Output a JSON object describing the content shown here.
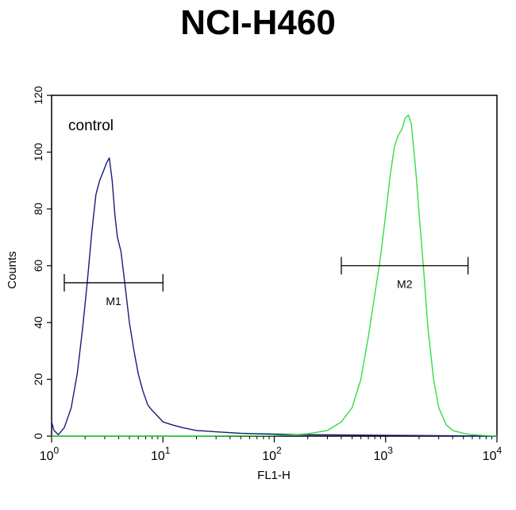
{
  "chart_data": {
    "type": "line",
    "title": "NCI-H460",
    "xlabel": "FL1-H",
    "ylabel": "Counts",
    "x_scale": "log",
    "xlim": [
      1,
      10000
    ],
    "ylim": [
      0,
      120
    ],
    "grid": false,
    "x_ticks": [
      {
        "value": 1,
        "base": "10",
        "exp": "0"
      },
      {
        "value": 10,
        "base": "10",
        "exp": "1"
      },
      {
        "value": 100,
        "base": "10",
        "exp": "2"
      },
      {
        "value": 1000,
        "base": "10",
        "exp": "3"
      },
      {
        "value": 10000,
        "base": "10",
        "exp": "4"
      }
    ],
    "y_ticks": [
      "0",
      "20",
      "40",
      "60",
      "80",
      "100",
      "120"
    ],
    "annotation": "control",
    "series": [
      {
        "color": "#1a1a7a",
        "x": [
          1,
          1.05,
          1.15,
          1.3,
          1.5,
          1.7,
          1.9,
          2.1,
          2.3,
          2.5,
          2.7,
          2.9,
          3.1,
          3.3,
          3.5,
          3.7,
          3.9,
          4.2,
          4.6,
          5.0,
          5.5,
          6.0,
          6.6,
          7.3,
          8.0,
          9.0,
          10,
          12,
          15,
          20,
          30,
          50,
          100,
          200,
          500,
          1000,
          10000
        ],
        "y": [
          5,
          2,
          0.5,
          3,
          10,
          22,
          38,
          55,
          72,
          85,
          90,
          93,
          96,
          98,
          90,
          78,
          70,
          65,
          52,
          40,
          30,
          22,
          16,
          11,
          9,
          7,
          5,
          4,
          3,
          2,
          1.5,
          1,
          0.7,
          0.5,
          0.4,
          0.3,
          0
        ]
      },
      {
        "color": "#33dd44",
        "x": [
          1,
          10,
          100,
          200,
          300,
          400,
          500,
          600,
          700,
          800,
          900,
          1000,
          1100,
          1200,
          1300,
          1400,
          1500,
          1600,
          1700,
          1800,
          1900,
          2000,
          2200,
          2400,
          2700,
          3000,
          3500,
          4000,
          5000,
          6000,
          8000,
          10000
        ],
        "y": [
          0,
          0,
          0.2,
          0.8,
          2,
          5,
          10,
          20,
          35,
          50,
          63,
          78,
          92,
          102,
          106,
          108,
          112,
          113,
          110,
          100,
          90,
          78,
          58,
          38,
          20,
          10,
          4,
          2,
          1,
          0.5,
          0.2,
          0
        ]
      }
    ],
    "markers": [
      {
        "label": "M1",
        "x_start": 1.3,
        "x_end": 10,
        "y": 54
      },
      {
        "label": "M2",
        "x_start": 400,
        "x_end": 5500,
        "y": 60
      }
    ]
  }
}
